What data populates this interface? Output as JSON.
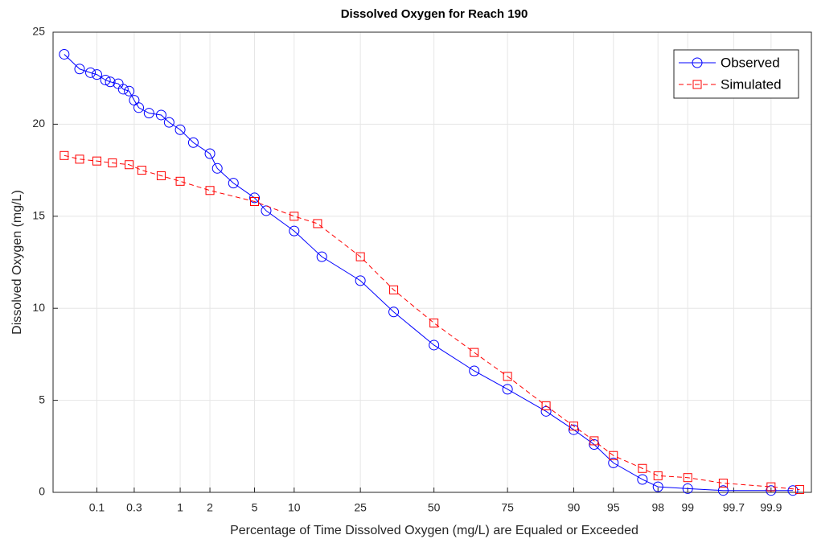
{
  "chart_data": {
    "type": "line",
    "title": "Dissolved Oxygen for Reach 190",
    "xlabel": "Percentage of Time Dissolved Oxygen (mg/L) are Equaled or Exceeded",
    "ylabel": "Dissolved Oxygen (mg/L)",
    "xscale": "probit",
    "xlim": [
      0.024,
      99.973
    ],
    "xticks": [
      0.1,
      0.3,
      1,
      2,
      5,
      10,
      25,
      50,
      75,
      90,
      95,
      98,
      99,
      99.7,
      99.9
    ],
    "ylim": [
      0,
      25
    ],
    "yticks": [
      0,
      5,
      10,
      15,
      20,
      25
    ],
    "grid": true,
    "legend": "northeast",
    "series": [
      {
        "name": "Observed",
        "color": "#0000ff",
        "marker": "circle",
        "dash": "solid",
        "x": [
          0.035,
          0.058,
          0.082,
          0.1,
          0.13,
          0.15,
          0.19,
          0.22,
          0.26,
          0.3,
          0.34,
          0.45,
          0.62,
          0.76,
          1,
          1.37,
          2,
          2.35,
          3.3,
          5,
          6.2,
          10,
          15.2,
          25,
          35.6,
          50,
          64.4,
          75,
          84.8,
          90,
          92.9,
          95,
          97.2,
          98,
          99,
          99.6,
          99.9,
          99.95
        ],
        "values": [
          23.8,
          23.0,
          22.8,
          22.7,
          22.4,
          22.3,
          22.2,
          21.9,
          21.8,
          21.3,
          20.9,
          20.6,
          20.5,
          20.1,
          19.7,
          19.0,
          18.4,
          17.6,
          16.8,
          16.0,
          15.3,
          14.2,
          12.8,
          11.5,
          9.8,
          8.0,
          6.6,
          5.6,
          4.4,
          3.4,
          2.6,
          1.6,
          0.7,
          0.3,
          0.2,
          0.1,
          0.1,
          0.1
        ]
      },
      {
        "name": "Simulated",
        "color": "#ff0000",
        "marker": "square",
        "dash": "dashed",
        "x": [
          0.035,
          0.058,
          0.1,
          0.16,
          0.26,
          0.37,
          0.62,
          1,
          2,
          5,
          10,
          14.3,
          25,
          35.6,
          50,
          64.4,
          75,
          84.8,
          90,
          92.9,
          95,
          97.2,
          98,
          99,
          99.6,
          99.9,
          99.96
        ],
        "values": [
          18.3,
          18.1,
          18.0,
          17.9,
          17.8,
          17.5,
          17.2,
          16.9,
          16.4,
          15.8,
          15.0,
          14.6,
          12.8,
          11.0,
          9.2,
          7.6,
          6.3,
          4.7,
          3.6,
          2.8,
          2.0,
          1.3,
          0.9,
          0.8,
          0.5,
          0.3,
          0.15
        ]
      }
    ]
  }
}
